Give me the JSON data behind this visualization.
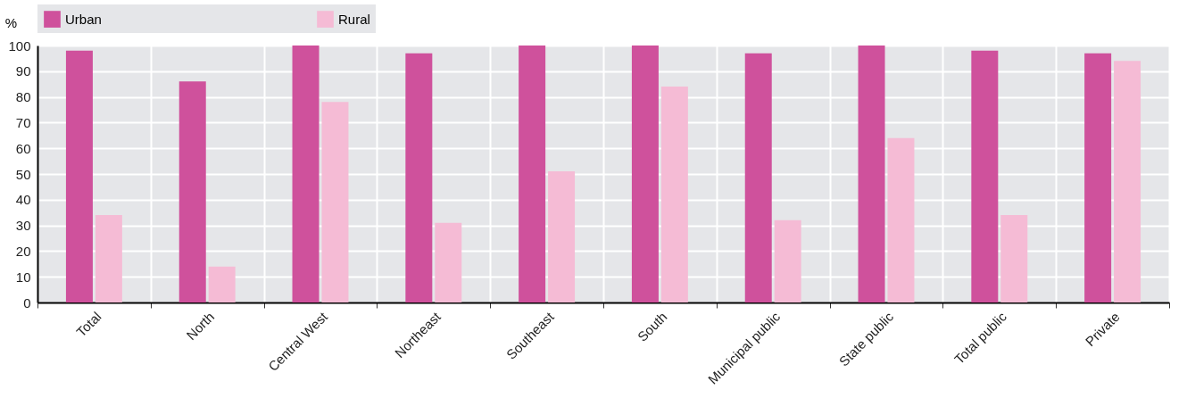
{
  "chart_data": {
    "type": "bar",
    "ylabel": "%",
    "categories": [
      "Total",
      "North",
      "Central West",
      "Northeast",
      "Southeast",
      "South",
      "Municipal public",
      "State public",
      "Total public",
      "Private"
    ],
    "series": [
      {
        "name": "Urban",
        "color": "#cf519c",
        "values": [
          98,
          86,
          100,
          97,
          100,
          100,
          97,
          100,
          98,
          97
        ]
      },
      {
        "name": "Rural",
        "color": "#f5bbd5",
        "values": [
          34,
          14,
          78,
          31,
          51,
          84,
          32,
          64,
          34,
          94
        ]
      }
    ],
    "ylim": [
      0,
      100
    ],
    "yticks": [
      0,
      10,
      20,
      30,
      40,
      50,
      60,
      70,
      80,
      90,
      100
    ],
    "grid": true,
    "legend": "top"
  }
}
